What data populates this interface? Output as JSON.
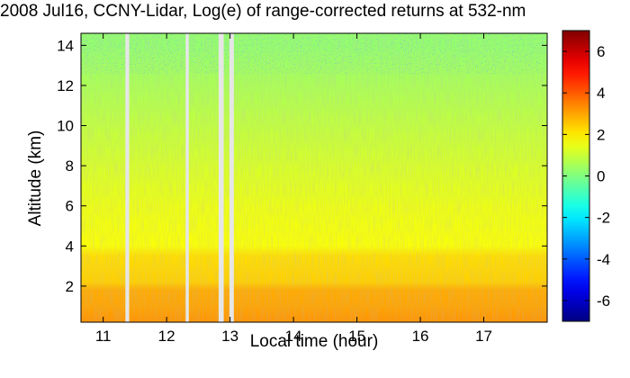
{
  "chart_data": {
    "type": "heatmap",
    "title": "2008 Jul16, CCNY-Lidar, Log(e) of range-corrected returns at 532-nm",
    "xlabel": "Local time (hour)",
    "ylabel": "Altitude (km)",
    "xlim": [
      10.65,
      18.0
    ],
    "ylim": [
      0.2,
      14.6
    ],
    "xticks": [
      11,
      12,
      13,
      14,
      15,
      16,
      17
    ],
    "yticks": [
      2,
      4,
      6,
      8,
      10,
      12,
      14
    ],
    "colorbar": {
      "range": [
        -7,
        7
      ],
      "ticks": [
        6,
        4,
        2,
        0,
        -2,
        -4,
        -6
      ],
      "colormap": "jet"
    },
    "data_gaps_hours": [
      [
        11.35,
        11.41
      ],
      [
        12.3,
        12.35
      ],
      [
        12.82,
        12.9
      ],
      [
        12.99,
        13.06
      ]
    ],
    "altitude_profile": [
      {
        "altitude": 0.3,
        "value": 3.2
      },
      {
        "altitude": 1.0,
        "value": 3.0
      },
      {
        "altitude": 1.8,
        "value": 2.9
      },
      {
        "altitude": 2.2,
        "value": 2.4
      },
      {
        "altitude": 3.5,
        "value": 2.2
      },
      {
        "altitude": 4.0,
        "value": 1.7
      },
      {
        "altitude": 6.0,
        "value": 1.5
      },
      {
        "altitude": 8.0,
        "value": 1.2
      },
      {
        "altitude": 10.0,
        "value": 0.9
      },
      {
        "altitude": 12.0,
        "value": 0.6
      },
      {
        "altitude": 14.0,
        "value": 0.3
      }
    ],
    "grid": false,
    "colors": {
      "gap": "#e6e6e6",
      "axis": "#000000"
    }
  }
}
